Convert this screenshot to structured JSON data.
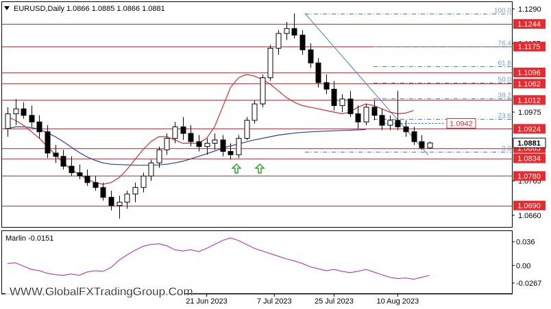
{
  "header": {
    "symbol_label": "EURUSD,Daily  1.0866 1.0885 1.0866 1.0881"
  },
  "watermark": "WWW.GlobalFXTradingGroup.Com",
  "indicator": {
    "label": "Marlin -0.0151",
    "ticks": [
      "0.036",
      "0.00",
      "-0.0267"
    ],
    "range": [
      -0.033,
      0.043
    ]
  },
  "colors": {
    "level_line": "#e8292e",
    "level_badge": "#e8292e",
    "candle": "#000000",
    "ma_fast": "#cc2e2e",
    "ma_slow": "#2a3aa8",
    "fib": "#3d7fc1",
    "fib_text": "#6f9fd0",
    "oscillator": "#b020a8",
    "arrow": "#1fa01f"
  },
  "chart_data": [
    {
      "type": "candlestick",
      "symbol": "EURUSD",
      "timeframe": "Daily",
      "ylim": [
        1.0625,
        1.131
      ],
      "x_labels": [
        "21 Jun 2023",
        "7 Jul 2023",
        "25 Jul 2023",
        "10 Aug 2023"
      ],
      "price_ticks": [
        "1.1290",
        "1.1185",
        "1.0975",
        "1.0765",
        "1.0660"
      ],
      "last_price": "1.0881",
      "horizontal_levels": [
        "1.1244",
        "1.1175",
        "1.1096",
        "1.1062",
        "1.1012",
        "1.0924",
        "1.0865",
        "1.0834",
        "1.0780",
        "1.0690"
      ],
      "target_level": "1.0942",
      "fibonacci": {
        "labels": [
          "100.0",
          "76.4",
          "61.8",
          "50.0",
          "38.2",
          "23.6",
          "0.0"
        ],
        "prices": [
          1.1275,
          1.1176,
          1.1115,
          1.1065,
          1.1016,
          1.0954,
          1.0855
        ]
      },
      "candles": [
        [
          1.0925,
          1.099,
          1.09,
          1.097
        ],
        [
          1.097,
          1.1015,
          1.0935,
          1.0985
        ],
        [
          1.0985,
          1.1005,
          1.0955,
          1.0965
        ],
        [
          1.0965,
          1.0995,
          1.093,
          1.0945
        ],
        [
          1.0945,
          1.0965,
          1.0895,
          1.0915
        ],
        [
          1.0915,
          1.0935,
          1.0835,
          1.085
        ],
        [
          1.085,
          1.0875,
          1.082,
          1.084
        ],
        [
          1.084,
          1.086,
          1.08,
          1.081
        ],
        [
          1.081,
          1.084,
          1.078,
          1.079
        ],
        [
          1.079,
          1.0815,
          1.077,
          1.078
        ],
        [
          1.078,
          1.08,
          1.075,
          1.076
        ],
        [
          1.076,
          1.078,
          1.0735,
          1.0745
        ],
        [
          1.0745,
          1.076,
          1.0705,
          1.0715
        ],
        [
          1.0715,
          1.0735,
          1.0675,
          1.069
        ],
        [
          1.069,
          1.072,
          1.065,
          1.07
        ],
        [
          1.07,
          1.0735,
          1.068,
          1.0725
        ],
        [
          1.0725,
          1.076,
          1.07,
          1.0745
        ],
        [
          1.0745,
          1.079,
          1.073,
          1.078
        ],
        [
          1.078,
          1.083,
          1.0765,
          1.082
        ],
        [
          1.082,
          1.087,
          1.0805,
          1.086
        ],
        [
          1.086,
          1.091,
          1.0845,
          1.0895
        ],
        [
          1.0895,
          1.0945,
          1.088,
          1.093
        ],
        [
          1.093,
          1.096,
          1.089,
          1.091
        ],
        [
          1.091,
          1.0935,
          1.087,
          1.0885
        ],
        [
          1.0885,
          1.0905,
          1.0855,
          1.087
        ],
        [
          1.087,
          1.0895,
          1.0845,
          1.088
        ],
        [
          1.088,
          1.091,
          1.086,
          1.089
        ],
        [
          1.089,
          1.0905,
          1.084,
          1.0855
        ],
        [
          1.0855,
          1.088,
          1.083,
          1.0845
        ],
        [
          1.0845,
          1.0905,
          1.0835,
          1.0895
        ],
        [
          1.0895,
          1.096,
          1.089,
          1.095
        ],
        [
          1.095,
          1.101,
          1.094,
          1.1
        ],
        [
          1.1,
          1.109,
          1.099,
          1.108
        ],
        [
          1.108,
          1.118,
          1.107,
          1.117
        ],
        [
          1.117,
          1.1225,
          1.115,
          1.1215
        ],
        [
          1.1215,
          1.125,
          1.1195,
          1.123
        ],
        [
          1.123,
          1.1276,
          1.12,
          1.121
        ],
        [
          1.121,
          1.1225,
          1.115,
          1.1165
        ],
        [
          1.1165,
          1.1185,
          1.111,
          1.1125
        ],
        [
          1.1125,
          1.114,
          1.105,
          1.1065
        ],
        [
          1.1065,
          1.109,
          1.103,
          1.1045
        ],
        [
          1.1045,
          1.107,
          1.098,
          1.0995
        ],
        [
          1.0995,
          1.103,
          1.0975,
          1.1015
        ],
        [
          1.1015,
          1.104,
          1.096,
          1.097
        ],
        [
          1.097,
          1.0995,
          1.0925,
          1.0945
        ],
        [
          1.0945,
          1.1,
          1.0935,
          1.099
        ],
        [
          1.099,
          1.101,
          1.095,
          1.0965
        ],
        [
          1.0965,
          1.0985,
          1.092,
          1.0935
        ],
        [
          1.0935,
          1.0965,
          1.092,
          1.095
        ],
        [
          1.095,
          1.104,
          1.092,
          1.093
        ],
        [
          1.093,
          1.095,
          1.09,
          1.0915
        ],
        [
          1.0915,
          1.093,
          1.0875,
          1.0885
        ],
        [
          1.0885,
          1.0905,
          1.086,
          1.0866
        ],
        [
          1.0866,
          1.0885,
          1.0866,
          1.0881
        ]
      ],
      "ma_fast": [
        1.096,
        1.095,
        1.0935,
        1.0915,
        1.0895,
        1.087,
        1.0845,
        1.082,
        1.08,
        1.0785,
        1.077,
        1.076,
        1.0755,
        1.076,
        1.0775,
        1.08,
        1.083,
        1.086,
        1.0885,
        1.09,
        1.09,
        1.089,
        1.088,
        1.088,
        1.088,
        1.0895,
        1.093,
        1.099,
        1.105,
        1.108,
        1.109,
        1.1085,
        1.1075,
        1.106,
        1.104,
        1.102,
        1.1005,
        1.0995,
        1.099,
        1.0985,
        1.098,
        1.0975,
        1.097,
        1.0975,
        1.099,
        1.1,
        1.0995,
        1.0985,
        1.0975,
        1.097,
        1.0972,
        1.098
      ],
      "ma_slow": [
        1.0925,
        1.093,
        1.093,
        1.0928,
        1.0922,
        1.0912,
        1.09,
        1.0885,
        1.0868,
        1.0852,
        1.0838,
        1.0828,
        1.082,
        1.0816,
        1.0815,
        1.0814,
        1.0813,
        1.0813,
        1.0813,
        1.0814,
        1.0816,
        1.082,
        1.0825,
        1.0832,
        1.084,
        1.0848,
        1.0856,
        1.0865,
        1.0872,
        1.0878,
        1.0884,
        1.089,
        1.0895,
        1.09,
        1.0905,
        1.0908,
        1.0911,
        1.0913,
        1.0915,
        1.0916,
        1.0917,
        1.0918,
        1.0919,
        1.092,
        1.0921,
        1.0922
      ],
      "oscillator": [
        0.003,
        0.004,
        -0.001,
        -0.006,
        -0.008,
        -0.012,
        -0.014,
        -0.015,
        -0.013,
        -0.015,
        -0.01,
        -0.008,
        -0.009,
        -0.003,
        0.008,
        0.016,
        0.023,
        0.029,
        0.032,
        0.033,
        0.03,
        0.024,
        0.022,
        0.024,
        0.021,
        0.026,
        0.032,
        0.038,
        0.042,
        0.038,
        0.032,
        0.026,
        0.022,
        0.018,
        0.014,
        0.01,
        0.007,
        0.003,
        -0.002,
        -0.005,
        -0.008,
        -0.006,
        -0.009,
        -0.011,
        -0.009,
        -0.006,
        -0.01,
        -0.014,
        -0.018,
        -0.02,
        -0.019,
        -0.021,
        -0.018,
        -0.0151
      ]
    }
  ]
}
